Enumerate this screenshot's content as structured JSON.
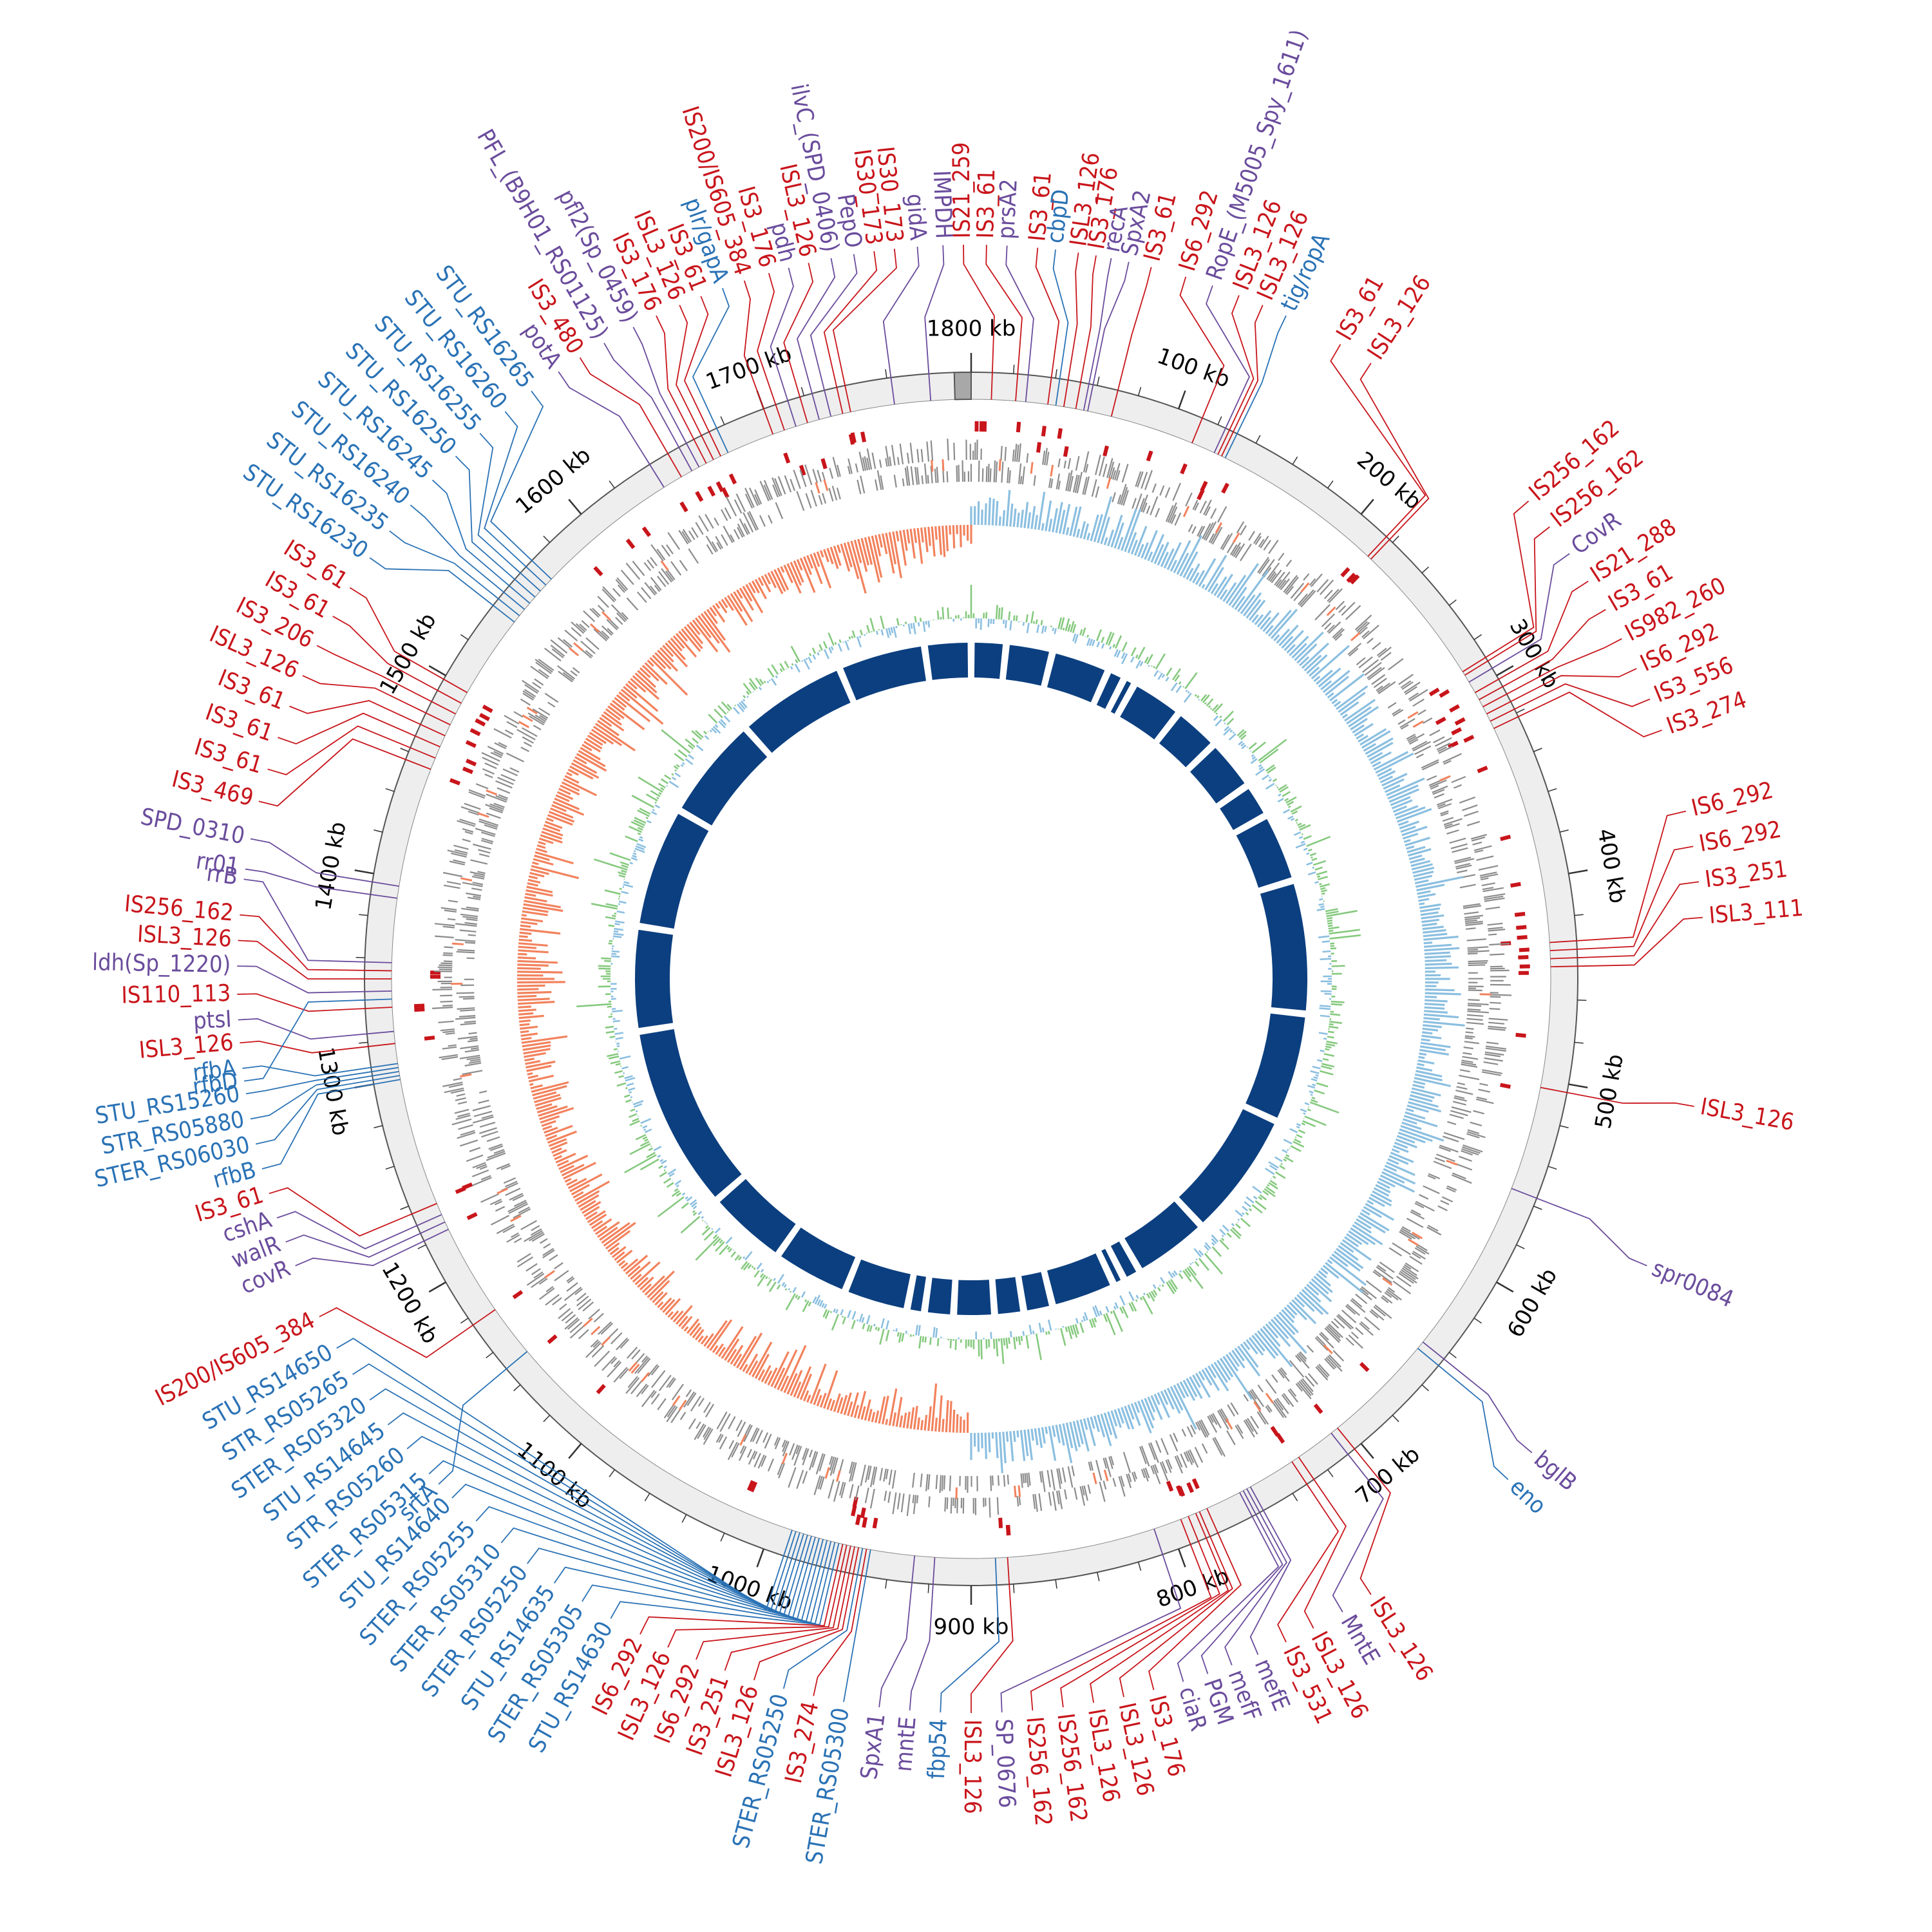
{
  "chart_data": {
    "type": "circular-genome-map",
    "genome_length_kb": 1800,
    "colors": {
      "is_element": "#c8151b",
      "gene_purple": "#6a4c9c",
      "gene_blue": "#2a72b5",
      "backbone": "#eeeeee",
      "cds": "#8c8c8c",
      "gc_skew_pos": "#8bbfe0",
      "gc_skew_neg": "#f2825d",
      "gc_content_pos": "#86c97f",
      "gc_content_neg": "#8bbfe0",
      "blocks": "#0c3f7f"
    },
    "tick_labels": [
      {
        "kb": 100,
        "text": "100 kb"
      },
      {
        "kb": 200,
        "text": "200 kb"
      },
      {
        "kb": 300,
        "text": "300 kb"
      },
      {
        "kb": 400,
        "text": "400 kb"
      },
      {
        "kb": 500,
        "text": "500 kb"
      },
      {
        "kb": 600,
        "text": "600 kb"
      },
      {
        "kb": 700,
        "text": "700 kb"
      },
      {
        "kb": 800,
        "text": "800 kb"
      },
      {
        "kb": 900,
        "text": "900 kb"
      },
      {
        "kb": 1000,
        "text": "1000 kb"
      },
      {
        "kb": 1100,
        "text": "1100 kb"
      },
      {
        "kb": 1200,
        "text": "1200 kb"
      },
      {
        "kb": 1300,
        "text": "1300 kb"
      },
      {
        "kb": 1400,
        "text": "1400 kb"
      },
      {
        "kb": 1500,
        "text": "1500 kb"
      },
      {
        "kb": 1600,
        "text": "1600 kb"
      },
      {
        "kb": 1700,
        "text": "1700 kb"
      },
      {
        "kb": 1800,
        "text": "1800 kb"
      }
    ],
    "labels": [
      {
        "text": "IS21_259",
        "kind": "is",
        "pos": 10,
        "la": -0.6
      },
      {
        "text": "IS3_61",
        "kind": "is",
        "pos": 22,
        "la": 1.2
      },
      {
        "text": "prsA2",
        "kind": "purple",
        "pos": 27,
        "la": 2.8
      },
      {
        "text": "IS3_61",
        "kind": "is",
        "pos": 38,
        "la": 5.2
      },
      {
        "text": "cbpD",
        "kind": "blue",
        "pos": 42,
        "la": 6.6
      },
      {
        "text": "ISL3_126",
        "kind": "is",
        "pos": 46,
        "la": 8.4
      },
      {
        "text": "IS3_176",
        "kind": "is",
        "pos": 52,
        "la": 9.8
      },
      {
        "text": "recA",
        "kind": "purple",
        "pos": 56,
        "la": 11.0
      },
      {
        "text": "SpxA2",
        "kind": "purple",
        "pos": 58,
        "la": 12.4
      },
      {
        "text": "IS3_61",
        "kind": "is",
        "pos": 70,
        "la": 14.2
      },
      {
        "text": "IS6_292",
        "kind": "is",
        "pos": 112,
        "la": 17.0
      },
      {
        "text": "RopE_(M5005_Spy_1611)",
        "kind": "purple",
        "pos": 124,
        "la": 19.2
      },
      {
        "text": "ISL3_126",
        "kind": "is",
        "pos": 126,
        "la": 21.4
      },
      {
        "text": "ISL3_126",
        "kind": "is",
        "pos": 128,
        "la": 23.4
      },
      {
        "text": "tig/ropA",
        "kind": "blue",
        "pos": 130,
        "la": 25.4
      },
      {
        "text": "IS3_61",
        "kind": "is",
        "pos": 216,
        "la": 30.2
      },
      {
        "text": "ISL3_126",
        "kind": "is",
        "pos": 218,
        "la": 33.0
      },
      {
        "text": "IS256_162",
        "kind": "is",
        "pos": 290,
        "la": 49.4
      },
      {
        "text": "IS256_162",
        "kind": "is",
        "pos": 292,
        "la": 52.0
      },
      {
        "text": "CovR",
        "kind": "purple",
        "pos": 296,
        "la": 54.6
      },
      {
        "text": "IS21_288",
        "kind": "is",
        "pos": 302,
        "la": 57.2
      },
      {
        "text": "IS3_61",
        "kind": "is",
        "pos": 306,
        "la": 59.8
      },
      {
        "text": "IS982_260",
        "kind": "is",
        "pos": 310,
        "la": 62.4
      },
      {
        "text": "IS6_292",
        "kind": "is",
        "pos": 314,
        "la": 65.0
      },
      {
        "text": "IS3_556",
        "kind": "is",
        "pos": 318,
        "la": 67.6
      },
      {
        "text": "IS3_274",
        "kind": "is",
        "pos": 322,
        "la": 70.2
      },
      {
        "text": "IS6_292",
        "kind": "is",
        "pos": 432,
        "la": 76.8
      },
      {
        "text": "IS6_292",
        "kind": "is",
        "pos": 436,
        "la": 79.6
      },
      {
        "text": "IS3_251",
        "kind": "is",
        "pos": 440,
        "la": 82.4
      },
      {
        "text": "ISL3_111",
        "kind": "is",
        "pos": 444,
        "la": 85.2
      },
      {
        "text": "ISL3_126",
        "kind": "is",
        "pos": 504,
        "la": 100.0
      },
      {
        "text": "spr0084",
        "kind": "purple",
        "pos": 556,
        "la": 113.0
      },
      {
        "text": "bglB",
        "kind": "purple",
        "pos": 644,
        "la": 130.2
      },
      {
        "text": "eno",
        "kind": "blue",
        "pos": 648,
        "la": 133.0
      },
      {
        "text": "ISL3_126",
        "kind": "is",
        "pos": 704,
        "la": 147.0
      },
      {
        "text": "MntE",
        "kind": "purple",
        "pos": 708,
        "la": 149.6
      },
      {
        "text": "ISL3_126",
        "kind": "is",
        "pos": 728,
        "la": 152.2
      },
      {
        "text": "IS3_531",
        "kind": "is",
        "pos": 732,
        "la": 154.6
      },
      {
        "text": "mefE",
        "kind": "purple",
        "pos": 756,
        "la": 157.0
      },
      {
        "text": "mefF",
        "kind": "purple",
        "pos": 758,
        "la": 159.2
      },
      {
        "text": "PGM",
        "kind": "purple",
        "pos": 760,
        "la": 161.2
      },
      {
        "text": "ciaR",
        "kind": "purple",
        "pos": 762,
        "la": 163.2
      },
      {
        "text": "IS3_176",
        "kind": "is",
        "pos": 780,
        "la": 165.6
      },
      {
        "text": "ISL3_126",
        "kind": "is",
        "pos": 784,
        "la": 168.0
      },
      {
        "text": "ISL3_126",
        "kind": "is",
        "pos": 786,
        "la": 170.4
      },
      {
        "text": "IS256_162",
        "kind": "is",
        "pos": 790,
        "la": 172.8
      },
      {
        "text": "IS256_162",
        "kind": "is",
        "pos": 794,
        "la": 175.2
      },
      {
        "text": "SP_0676",
        "kind": "purple",
        "pos": 808,
        "la": 177.6
      },
      {
        "text": "ISL3_126",
        "kind": "is",
        "pos": 882,
        "la": 180.0
      },
      {
        "text": "fbp54",
        "kind": "blue",
        "pos": 888,
        "la": 182.4
      },
      {
        "text": "mntE",
        "kind": "purple",
        "pos": 918,
        "la": 184.8
      },
      {
        "text": "SpxA1",
        "kind": "purple",
        "pos": 928,
        "la": 187.2
      },
      {
        "text": "STER_RS05300",
        "kind": "blue",
        "pos": 950,
        "la": 190.0
      },
      {
        "text": "IS3_274",
        "kind": "is",
        "pos": 952,
        "la": 192.4
      },
      {
        "text": "STER_RS05250",
        "kind": "blue",
        "pos": 954,
        "la": 194.8
      },
      {
        "text": "ISL3_126",
        "kind": "is",
        "pos": 956,
        "la": 197.2
      },
      {
        "text": "IS3_251",
        "kind": "is",
        "pos": 958,
        "la": 199.6
      },
      {
        "text": "IS6_292",
        "kind": "is",
        "pos": 960,
        "la": 202.0
      },
      {
        "text": "ISL3_126",
        "kind": "is",
        "pos": 962,
        "la": 204.4
      },
      {
        "text": "IS6_292",
        "kind": "is",
        "pos": 964,
        "la": 206.8
      },
      {
        "text": "STU_RS14630",
        "kind": "blue",
        "pos": 966,
        "la": 209.4
      },
      {
        "text": "STER_RS05305",
        "kind": "blue",
        "pos": 968,
        "la": 212.0
      },
      {
        "text": "STU_RS14635",
        "kind": "blue",
        "pos": 970,
        "la": 214.6
      },
      {
        "text": "STER_RS05250",
        "kind": "blue",
        "pos": 972,
        "la": 217.2
      },
      {
        "text": "STER_RS05310",
        "kind": "blue",
        "pos": 974,
        "la": 219.8
      },
      {
        "text": "STER_RS05255",
        "kind": "blue",
        "pos": 976,
        "la": 222.4
      },
      {
        "text": "STU_RS14640",
        "kind": "blue",
        "pos": 978,
        "la": 225.0
      },
      {
        "text": "STER_RS05315",
        "kind": "blue",
        "pos": 980,
        "la": 227.6
      },
      {
        "text": "STR_RS05260",
        "kind": "blue",
        "pos": 982,
        "la": 230.2
      },
      {
        "text": "STU_RS14645",
        "kind": "blue",
        "pos": 984,
        "la": 232.6
      },
      {
        "text": "STER_RS05320",
        "kind": "blue",
        "pos": 986,
        "la": 235.0
      },
      {
        "text": "STR_RS05265",
        "kind": "blue",
        "pos": 988,
        "la": 237.4
      },
      {
        "text": "STU_RS14650",
        "kind": "blue",
        "pos": 990,
        "la": 239.8
      },
      {
        "text": "IS200/IS605_384",
        "kind": "is",
        "pos": 1176,
        "la": 242.6
      },
      {
        "text": "srtA",
        "kind": "blue",
        "pos": 1150,
        "la": 226.5
      },
      {
        "text": "covR",
        "kind": "purple",
        "pos": 1222,
        "la": 247.0
      },
      {
        "text": "walR",
        "kind": "purple",
        "pos": 1226,
        "la": 249.0
      },
      {
        "text": "cshA",
        "kind": "purple",
        "pos": 1230,
        "la": 251.0
      },
      {
        "text": "IS3_61",
        "kind": "is",
        "pos": 1236,
        "la": 253.0
      },
      {
        "text": "rfbB",
        "kind": "blue",
        "pos": 1300,
        "la": 255.0
      },
      {
        "text": "STER_RS06030",
        "kind": "blue",
        "pos": 1302,
        "la": 257.0
      },
      {
        "text": "STR_RS05880",
        "kind": "blue",
        "pos": 1304,
        "la": 259.0
      },
      {
        "text": "STU_RS15260",
        "kind": "blue",
        "pos": 1306,
        "la": 261.0
      },
      {
        "text": "rfbA",
        "kind": "blue",
        "pos": 1308,
        "la": 263.0
      },
      {
        "text": "ISL3_126",
        "kind": "is",
        "pos": 1318,
        "la": 265.0
      },
      {
        "text": "ptsI",
        "kind": "purple",
        "pos": 1324,
        "la": 266.8
      },
      {
        "text": "IS110_113",
        "kind": "is",
        "pos": 1336,
        "la": 268.8
      },
      {
        "text": "rfbD",
        "kind": "blue",
        "pos": 1340,
        "la": 262.0
      },
      {
        "text": "ldh(Sp_1220)",
        "kind": "purple",
        "pos": 1344,
        "la": 271.0
      },
      {
        "text": "ISL3_126",
        "kind": "is",
        "pos": 1350,
        "la": 273.0
      },
      {
        "text": "IS256_162",
        "kind": "is",
        "pos": 1354,
        "la": 275.0
      },
      {
        "text": "rrB",
        "kind": "purple",
        "pos": 1358,
        "la": 277.8
      },
      {
        "text": "rr01",
        "kind": "purple",
        "pos": 1390,
        "la": 278.6
      },
      {
        "text": "SPD_0310",
        "kind": "purple",
        "pos": 1396,
        "la": 281.0
      },
      {
        "text": "IS3_469",
        "kind": "is",
        "pos": 1456,
        "la": 284.0
      },
      {
        "text": "IS3_61",
        "kind": "is",
        "pos": 1462,
        "la": 286.6
      },
      {
        "text": "IS3_61",
        "kind": "is",
        "pos": 1468,
        "la": 289.2
      },
      {
        "text": "IS3_61",
        "kind": "is",
        "pos": 1474,
        "la": 291.8
      },
      {
        "text": "ISL3_126",
        "kind": "is",
        "pos": 1480,
        "la": 294.4
      },
      {
        "text": "IS3_206",
        "kind": "is",
        "pos": 1486,
        "la": 297.0
      },
      {
        "text": "IS3_61",
        "kind": "is",
        "pos": 1492,
        "la": 299.6
      },
      {
        "text": "IS3_61",
        "kind": "is",
        "pos": 1498,
        "la": 302.2
      },
      {
        "text": "STU_RS16230",
        "kind": "blue",
        "pos": 1540,
        "la": 305.0
      },
      {
        "text": "STU_RS16235",
        "kind": "blue",
        "pos": 1544,
        "la": 307.6
      },
      {
        "text": "STU_RS16240",
        "kind": "blue",
        "pos": 1548,
        "la": 310.2
      },
      {
        "text": "STU_RS16245",
        "kind": "blue",
        "pos": 1552,
        "la": 312.8
      },
      {
        "text": "STU_RS16250",
        "kind": "blue",
        "pos": 1556,
        "la": 315.4
      },
      {
        "text": "STU_RS16255",
        "kind": "blue",
        "pos": 1560,
        "la": 318.0
      },
      {
        "text": "STU_RS16260",
        "kind": "blue",
        "pos": 1564,
        "la": 320.6
      },
      {
        "text": "STU_RS16265",
        "kind": "blue",
        "pos": 1568,
        "la": 323.2
      },
      {
        "text": "potA",
        "kind": "purple",
        "pos": 1640,
        "la": 325.8
      },
      {
        "text": "IS3_480",
        "kind": "is",
        "pos": 1650,
        "la": 327.8
      },
      {
        "text": "PFL_(B9H01_RS01125)",
        "kind": "purple",
        "pos": 1656,
        "la": 330.0
      },
      {
        "text": "pfl2(Sp_0459)",
        "kind": "purple",
        "pos": 1660,
        "la": 332.6
      },
      {
        "text": "IS3_176",
        "kind": "is",
        "pos": 1664,
        "la": 334.6
      },
      {
        "text": "ISL3_126",
        "kind": "is",
        "pos": 1668,
        "la": 336.6
      },
      {
        "text": "IS3_61",
        "kind": "is",
        "pos": 1672,
        "la": 338.4
      },
      {
        "text": "plr/gapA",
        "kind": "blue",
        "pos": 1676,
        "la": 340.2
      },
      {
        "text": "IS200/IS605_384",
        "kind": "is",
        "pos": 1700,
        "la": 342.0
      },
      {
        "text": "IS3_176",
        "kind": "is",
        "pos": 1706,
        "la": 344.0
      },
      {
        "text": "pdh",
        "kind": "purple",
        "pos": 1712,
        "la": 345.6
      },
      {
        "text": "ISL3_126",
        "kind": "is",
        "pos": 1718,
        "la": 347.2
      },
      {
        "text": "ilvC_(SPD_0406)",
        "kind": "purple",
        "pos": 1724,
        "la": 349.0
      },
      {
        "text": "PepO",
        "kind": "purple",
        "pos": 1730,
        "la": 350.8
      },
      {
        "text": "IS30_173",
        "kind": "is",
        "pos": 1736,
        "la": 352.4
      },
      {
        "text": "IS30_173",
        "kind": "is",
        "pos": 1740,
        "la": 354.0
      },
      {
        "text": "gidA",
        "kind": "purple",
        "pos": 1762,
        "la": 355.8
      },
      {
        "text": "IMPDH",
        "kind": "purple",
        "pos": 1780,
        "la": 357.8
      }
    ]
  }
}
